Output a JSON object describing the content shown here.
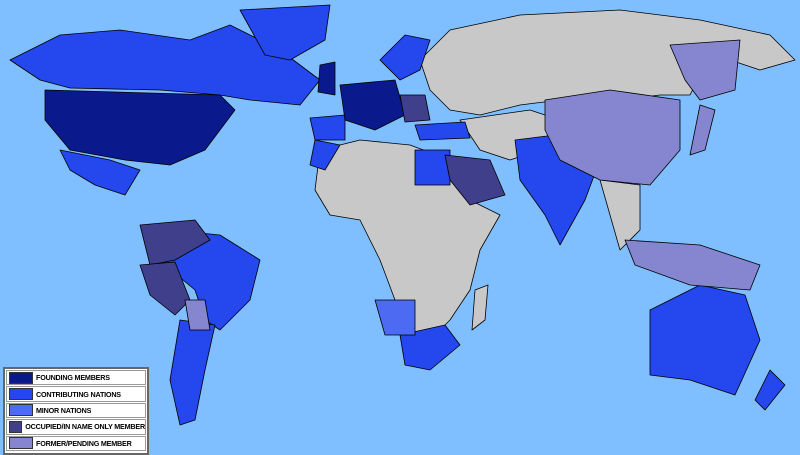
{
  "colors": {
    "ocean": "#80bfff",
    "land_nonmember": "#c8c8c8",
    "founding": "#0a1a8c",
    "contributing": "#2447ee",
    "minor": "#4d6af2",
    "occupied": "#3f3f8c",
    "former": "#8585d0"
  },
  "legend": {
    "items": [
      {
        "label": "FOUNDING MEMBERS",
        "category": "founding"
      },
      {
        "label": "CONTRIBUTING NATIONS",
        "category": "contributing"
      },
      {
        "label": "MINOR NATIONS",
        "category": "minor"
      },
      {
        "label": "OCCUPIED/IN NAME ONLY MEMBER",
        "category": "occupied"
      },
      {
        "label": "FORMER/PENDING MEMBER",
        "category": "former"
      }
    ]
  }
}
